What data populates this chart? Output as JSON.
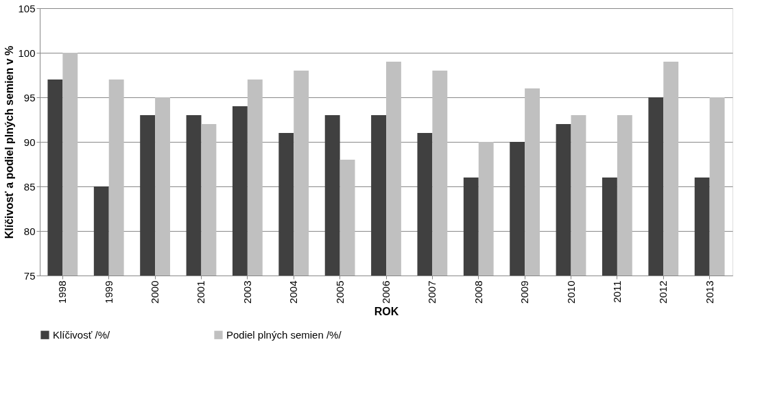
{
  "chart_data": {
    "type": "bar",
    "xlabel": "ROK",
    "ylabel": "Klíčivosť a podiel plných semien v %",
    "categories": [
      "1998",
      "1999",
      "2000",
      "2001",
      "2003",
      "2004",
      "2005",
      "2006",
      "2007",
      "2008",
      "2009",
      "2010",
      "2011",
      "2012",
      "2013"
    ],
    "series": [
      {
        "name": "Klíčivosť /%/",
        "color": "#404040",
        "values": [
          97,
          85,
          93,
          93,
          94,
          91,
          93,
          93,
          91,
          86,
          90,
          92,
          86,
          95,
          86
        ]
      },
      {
        "name": "Podiel plných semien /%/",
        "color": "#c0c0c0",
        "values": [
          100,
          97,
          95,
          92,
          97,
          98,
          88,
          99,
          98,
          90,
          96,
          93,
          93,
          99,
          95
        ]
      }
    ],
    "ylim": [
      75,
      105
    ],
    "yticks": [
      75,
      80,
      85,
      90,
      95,
      100,
      105
    ],
    "grid": "y",
    "legend": "bottom"
  }
}
